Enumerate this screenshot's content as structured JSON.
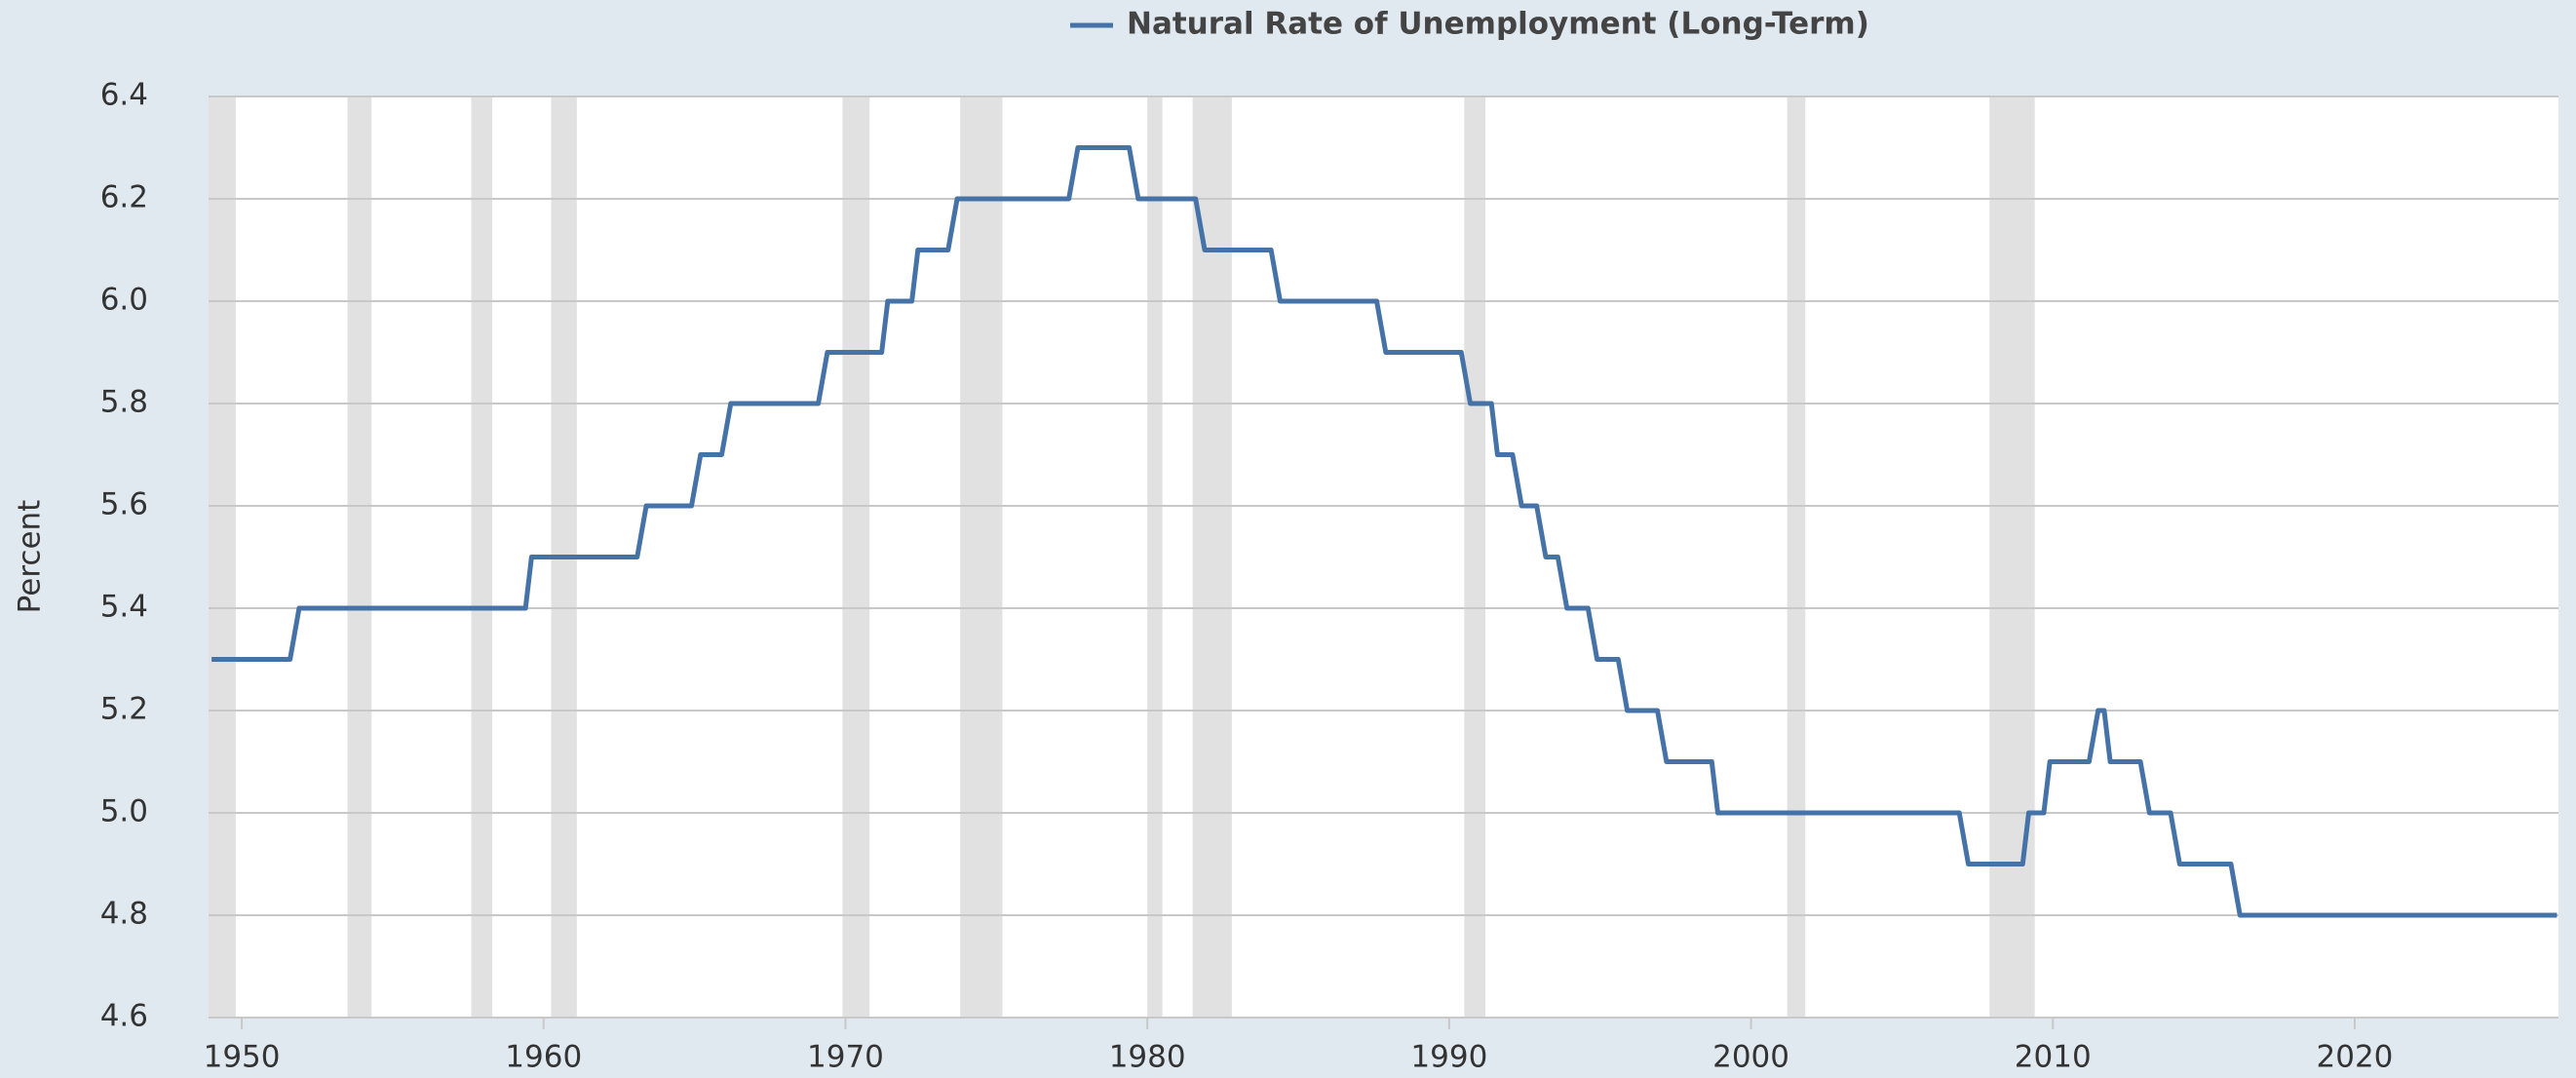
{
  "chart_data": {
    "type": "line",
    "y_label": "Percent",
    "x": [
      1949.0,
      1951.6,
      1951.9,
      1959.4,
      1959.6,
      1963.1,
      1963.4,
      1964.9,
      1965.2,
      1965.9,
      1966.2,
      1969.1,
      1969.4,
      1971.2,
      1971.4,
      1972.2,
      1972.4,
      1973.4,
      1973.7,
      1977.4,
      1977.7,
      1979.4,
      1979.7,
      1981.6,
      1981.9,
      1984.1,
      1984.4,
      1987.6,
      1987.9,
      1990.4,
      1990.7,
      1991.4,
      1991.6,
      1992.1,
      1992.4,
      1992.9,
      1993.2,
      1993.6,
      1993.9,
      1994.6,
      1994.9,
      1995.6,
      1995.9,
      1996.9,
      1997.2,
      1998.7,
      1998.9,
      2006.9,
      2007.2,
      2009.0,
      2009.2,
      2009.7,
      2009.9,
      2011.2,
      2011.5,
      2011.7,
      2011.9,
      2012.9,
      2013.2,
      2013.9,
      2014.2,
      2015.9,
      2016.2,
      2026.7
    ],
    "series": [
      {
        "name": "Natural Rate of Unemployment (Long-Term)",
        "color": "#4572a7",
        "values": [
          5.3,
          5.3,
          5.4,
          5.4,
          5.5,
          5.5,
          5.6,
          5.6,
          5.7,
          5.7,
          5.8,
          5.8,
          5.9,
          5.9,
          6.0,
          6.0,
          6.1,
          6.1,
          6.2,
          6.2,
          6.3,
          6.3,
          6.2,
          6.2,
          6.1,
          6.1,
          6.0,
          6.0,
          5.9,
          5.9,
          5.8,
          5.8,
          5.7,
          5.7,
          5.6,
          5.6,
          5.5,
          5.5,
          5.4,
          5.4,
          5.3,
          5.3,
          5.2,
          5.2,
          5.1,
          5.1,
          5.0,
          5.0,
          4.9,
          4.9,
          5.0,
          5.0,
          5.1,
          5.1,
          5.2,
          5.2,
          5.1,
          5.1,
          5.0,
          5.0,
          4.9,
          4.9,
          4.8,
          4.8
        ]
      }
    ],
    "shaded_periods": [
      [
        1948.8,
        1949.8
      ],
      [
        1953.5,
        1954.3
      ],
      [
        1957.6,
        1958.3
      ],
      [
        1960.25,
        1961.1
      ],
      [
        1969.9,
        1970.8
      ],
      [
        1973.8,
        1975.2
      ],
      [
        1980.0,
        1980.5
      ],
      [
        1981.5,
        1982.8
      ],
      [
        1990.5,
        1991.2
      ],
      [
        2001.2,
        2001.8
      ],
      [
        2007.9,
        2009.4
      ]
    ],
    "shade_color": "#e1e1e1",
    "xlim": [
      1948.9,
      2026.75
    ],
    "xticks": [
      1950,
      1960,
      1970,
      1980,
      1990,
      2000,
      2010,
      2020
    ],
    "ylim": [
      4.6,
      6.4
    ],
    "yticks": [
      4.6,
      4.8,
      {
        "value": 5.0,
        "label": "5.0"
      },
      5.2,
      5.4,
      5.6,
      5.8,
      {
        "value": 6.0,
        "label": "6.0"
      },
      6.2,
      6.4
    ],
    "grid": true
  }
}
